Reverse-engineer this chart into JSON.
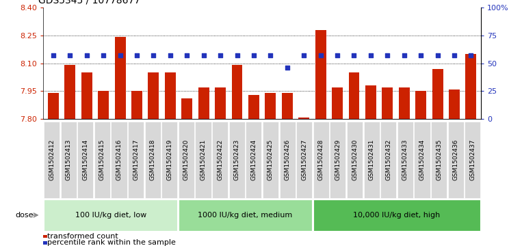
{
  "title": "GDS5345 / 10778677",
  "samples": [
    "GSM1502412",
    "GSM1502413",
    "GSM1502414",
    "GSM1502415",
    "GSM1502416",
    "GSM1502417",
    "GSM1502418",
    "GSM1502419",
    "GSM1502420",
    "GSM1502421",
    "GSM1502422",
    "GSM1502423",
    "GSM1502424",
    "GSM1502425",
    "GSM1502426",
    "GSM1502427",
    "GSM1502428",
    "GSM1502429",
    "GSM1502430",
    "GSM1502431",
    "GSM1502432",
    "GSM1502433",
    "GSM1502434",
    "GSM1502435",
    "GSM1502436",
    "GSM1502437"
  ],
  "bar_values": [
    7.94,
    8.09,
    8.05,
    7.95,
    8.24,
    7.95,
    8.05,
    8.05,
    7.91,
    7.97,
    7.97,
    8.09,
    7.93,
    7.94,
    7.94,
    7.81,
    8.28,
    7.97,
    8.05,
    7.98,
    7.97,
    7.97,
    7.95,
    8.07,
    7.96,
    8.15
  ],
  "percentile_values": [
    57,
    57,
    57,
    57,
    57,
    57,
    57,
    57,
    57,
    57,
    57,
    57,
    57,
    57,
    46,
    57,
    57,
    57,
    57,
    57,
    57,
    57,
    57,
    57,
    57,
    57
  ],
  "ymin": 7.8,
  "ymax": 8.4,
  "yticks": [
    7.8,
    7.95,
    8.1,
    8.25,
    8.4
  ],
  "right_yticks": [
    0,
    25,
    50,
    75,
    100
  ],
  "right_ytick_labels": [
    "0",
    "25",
    "50",
    "75",
    "100%"
  ],
  "bar_color": "#cc2200",
  "percentile_color": "#2233bb",
  "plot_bg": "#ffffff",
  "tick_bg": "#d8d8d8",
  "groups": [
    {
      "label": "100 IU/kg diet, low",
      "start": 0,
      "end": 8,
      "color": "#cceecc"
    },
    {
      "label": "1000 IU/kg diet, medium",
      "start": 8,
      "end": 16,
      "color": "#99dd99"
    },
    {
      "label": "10,000 IU/kg diet, high",
      "start": 16,
      "end": 26,
      "color": "#55bb55"
    }
  ],
  "dose_label": "dose",
  "legend1_label": "transformed count",
  "legend2_label": "percentile rank within the sample",
  "grid_lines": [
    7.95,
    8.1,
    8.25
  ],
  "title_fontsize": 10,
  "tick_fontsize": 6.5,
  "axis_fontsize": 8
}
